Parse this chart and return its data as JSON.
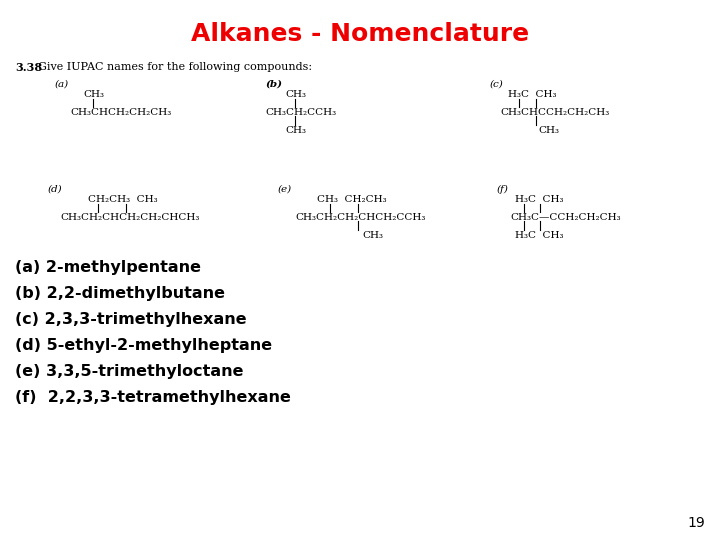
{
  "title": "Alkanes - Nomenclature",
  "title_color": "#EE0000",
  "title_fontsize": 18,
  "title_bold": false,
  "background_color": "#ffffff",
  "problem_label": "3.38",
  "problem_text": "  Give IUPAC names for the following compounds:",
  "answers": [
    "(a) 2-methylpentane",
    "(b) 2,2-dimethylbutane",
    "(c) 2,3,3-trimethylhexane",
    "(d) 5-ethyl-2-methylheptane",
    "(e) 3,3,5-trimethyloctane",
    "(f)  2,2,3,3-tetramethylhexane"
  ],
  "page_number": "19",
  "answer_fontsize": 11.5,
  "answer_bold": true,
  "struct_fontsize": 7.5,
  "label_fontsize": 7.5
}
